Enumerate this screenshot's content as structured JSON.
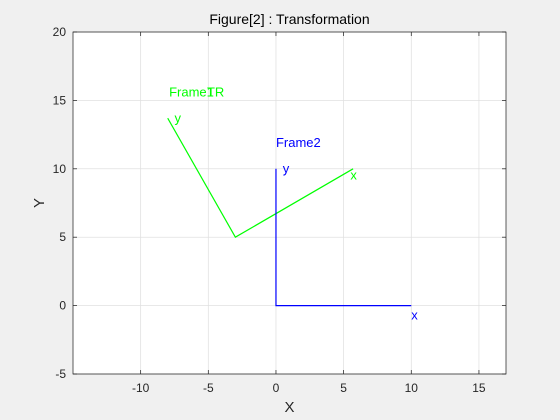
{
  "chart_data": {
    "type": "line",
    "title": "Figure[2] : Transformation",
    "xlabel": "X",
    "ylabel": "Y",
    "xlim": [
      -15,
      17
    ],
    "ylim": [
      -5,
      20
    ],
    "xticks": [
      -10,
      -5,
      0,
      5,
      10,
      15
    ],
    "yticks": [
      -5,
      0,
      5,
      10,
      15,
      20
    ],
    "grid": true,
    "series": [
      {
        "color": "#00ff00",
        "points": [
          [
            -8,
            13.7
          ],
          [
            -3,
            5
          ],
          [
            5.7,
            10
          ]
        ]
      },
      {
        "color": "#0000ff",
        "points": [
          [
            0,
            10
          ],
          [
            0,
            0
          ],
          [
            10,
            0
          ]
        ]
      }
    ],
    "annotations": [
      {
        "text": "Frame1",
        "x": -7.9,
        "y": 15.3,
        "color": "#00ff00"
      },
      {
        "text": "TR",
        "x": -5.1,
        "y": 15.3,
        "color": "#00ff00"
      },
      {
        "text": "y",
        "x": -7.5,
        "y": 13.4,
        "color": "#00ff00"
      },
      {
        "text": "x",
        "x": 5.5,
        "y": 9.2,
        "color": "#00ff00"
      },
      {
        "text": "Frame2",
        "x": 0,
        "y": 11.6,
        "color": "#0000ff"
      },
      {
        "text": "y",
        "x": 0.5,
        "y": 9.7,
        "color": "#0000ff"
      },
      {
        "text": "x",
        "x": 10,
        "y": -1,
        "color": "#0000ff"
      }
    ]
  }
}
